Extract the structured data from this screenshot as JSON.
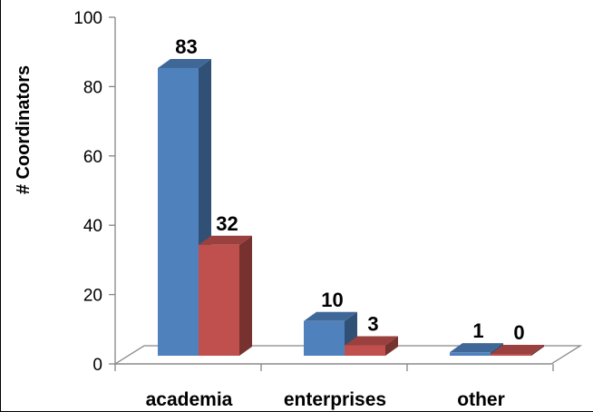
{
  "chart_data": {
    "type": "bar",
    "title": "",
    "xlabel": "",
    "ylabel": "# Coordinators",
    "ylim": [
      0,
      100
    ],
    "yticks": [
      0,
      20,
      40,
      60,
      80,
      100
    ],
    "categories": [
      "academia",
      "enterprises",
      "other"
    ],
    "series": [
      {
        "values": [
          83,
          10,
          1
        ],
        "color": "#4F81BD"
      },
      {
        "values": [
          32,
          3,
          0
        ],
        "color": "#C0504D"
      }
    ],
    "data_labels": true,
    "grid": false,
    "legend": "none",
    "style": "3d-column"
  }
}
